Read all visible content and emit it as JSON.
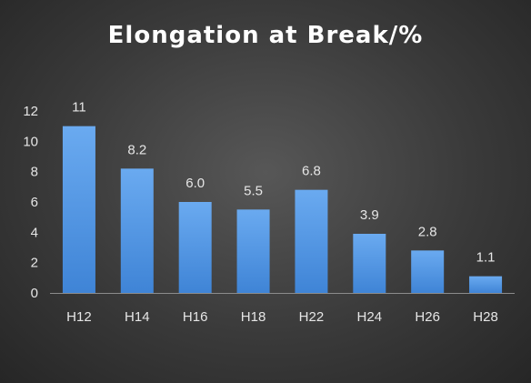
{
  "chart_data": {
    "type": "bar",
    "title": "Elongation at Break/%",
    "categories": [
      "H12",
      "H14",
      "H16",
      "H18",
      "H22",
      "H24",
      "H26",
      "H28"
    ],
    "values": [
      11,
      8.2,
      6.0,
      5.5,
      6.8,
      3.9,
      2.8,
      1.1
    ],
    "data_labels": [
      "11",
      "8.2",
      "6.0",
      "5.5",
      "6.8",
      "3.9",
      "2.8",
      "1.1"
    ],
    "yticks": [
      "0",
      "2",
      "4",
      "6",
      "8",
      "10",
      "12"
    ],
    "ylim": [
      0,
      12
    ],
    "grid": false,
    "legend": "none",
    "colors": {
      "bar_top": "#6aaaf0",
      "bar_bottom": "#3f84d6",
      "text": "#e6e6e6",
      "axis": "#8c8c8c",
      "background": "#3a3a3a"
    }
  }
}
